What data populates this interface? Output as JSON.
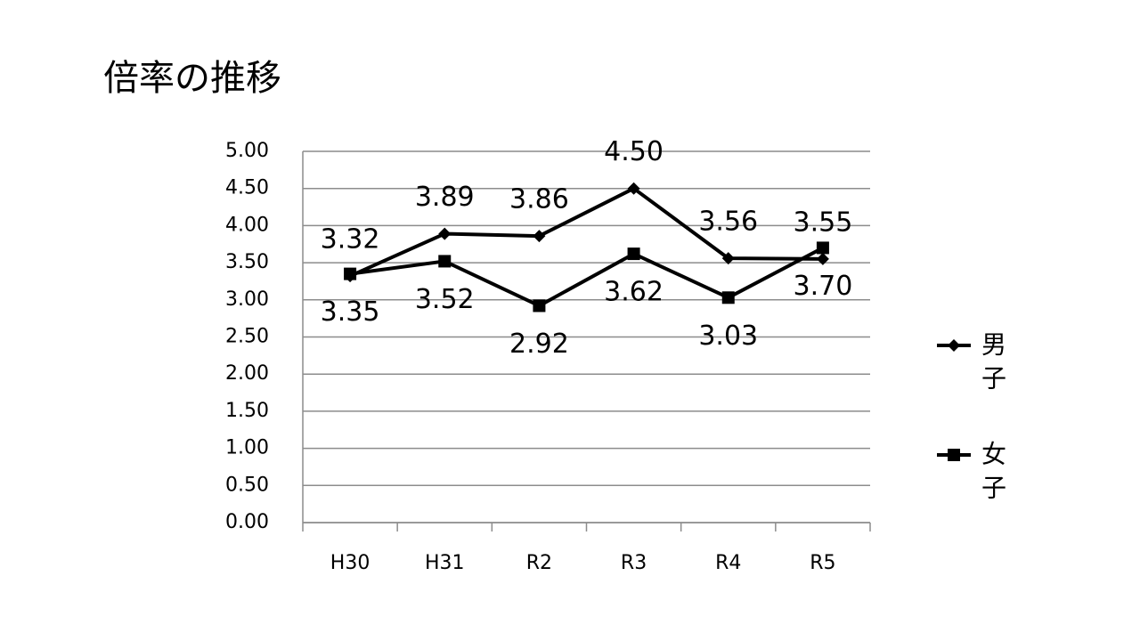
{
  "chart_data": {
    "type": "line",
    "title": "倍率の推移",
    "categories": [
      "H30",
      "H31",
      "R2",
      "R3",
      "R4",
      "R5"
    ],
    "series": [
      {
        "name": "男子",
        "color": "#000000",
        "marker": "diamond",
        "values": [
          3.32,
          3.89,
          3.86,
          4.5,
          3.56,
          3.55
        ],
        "value_labels": [
          "3.32",
          "3.89",
          "3.86",
          "4.50",
          "3.56",
          "3.55"
        ]
      },
      {
        "name": "女子",
        "color": "#000000",
        "marker": "square",
        "values": [
          3.35,
          3.52,
          2.92,
          3.62,
          3.03,
          3.7
        ],
        "value_labels": [
          "3.35",
          "3.52",
          "2.92",
          "3.62",
          "3.03",
          "3.70"
        ]
      }
    ],
    "ylim": [
      0,
      5
    ],
    "yticks": [
      {
        "value": 0,
        "label": "0.00"
      },
      {
        "value": 0.5,
        "label": "0.50"
      },
      {
        "value": 1,
        "label": "1.00"
      },
      {
        "value": 1.5,
        "label": "1.50"
      },
      {
        "value": 2,
        "label": "2.00"
      },
      {
        "value": 2.5,
        "label": "2.50"
      },
      {
        "value": 3,
        "label": "3.00"
      },
      {
        "value": 3.5,
        "label": "3.50"
      },
      {
        "value": 4,
        "label": "4.00"
      },
      {
        "value": 4.5,
        "label": "4.50"
      },
      {
        "value": 5,
        "label": "5.00"
      }
    ],
    "grid": true,
    "legend": "right"
  }
}
